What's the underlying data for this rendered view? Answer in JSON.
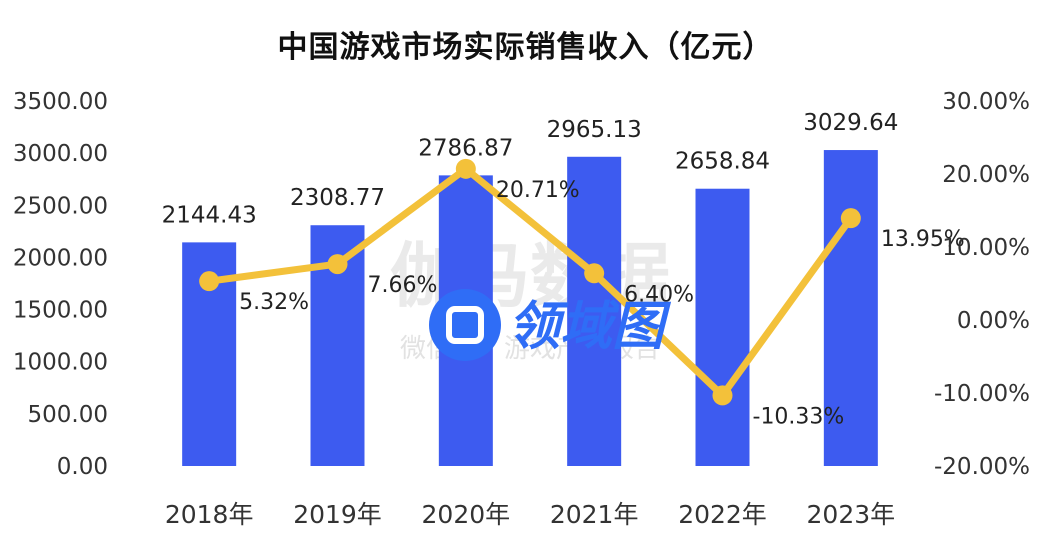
{
  "chart_data": {
    "type": "bar",
    "title": "中国游戏市场实际销售收入（亿元）",
    "categories": [
      "2018年",
      "2019年",
      "2020年",
      "2021年",
      "2022年",
      "2023年"
    ],
    "series": [
      {
        "type": "bar",
        "axis": "left",
        "values": [
          2144.43,
          2308.77,
          2786.87,
          2965.13,
          2658.84,
          3029.64
        ],
        "labels": [
          "2144.43",
          "2308.77",
          "2786.87",
          "2965.13",
          "2658.84",
          "3029.64"
        ],
        "color": "#3d5bf0"
      },
      {
        "type": "line",
        "axis": "right",
        "values": [
          5.32,
          7.66,
          20.71,
          6.4,
          -10.33,
          13.95
        ],
        "labels": [
          "5.32%",
          "7.66%",
          "20.71%",
          "6.40%",
          "-10.33%",
          "13.95%"
        ],
        "color": "#f3c13a"
      }
    ],
    "y_left": {
      "min": 0,
      "max": 3500,
      "ticks": [
        "0.00",
        "500.00",
        "1000.00",
        "1500.00",
        "2000.00",
        "2500.00",
        "3000.00",
        "3500.00"
      ]
    },
    "y_right": {
      "min": -20,
      "max": 30,
      "ticks": [
        "-20.00%",
        "-10.00%",
        "0.00%",
        "10.00%",
        "20.00%",
        "30.00%"
      ]
    },
    "grid": false
  },
  "watermark": {
    "main": "伽马数据",
    "sub": "微信号：游戏产业报告",
    "logo_text": "领域图"
  }
}
